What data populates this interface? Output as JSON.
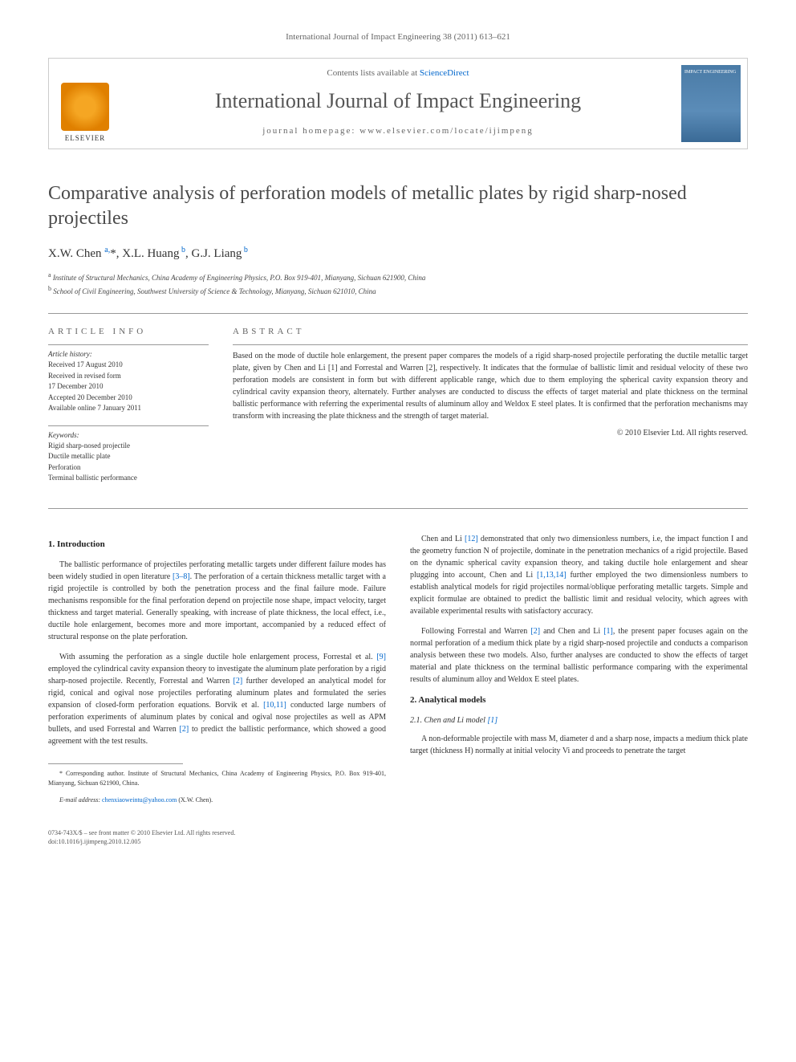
{
  "citation": "International Journal of Impact Engineering 38 (2011) 613–621",
  "masthead": {
    "contents_prefix": "Contents lists available at ",
    "contents_link": "ScienceDirect",
    "journal_name": "International Journal of Impact Engineering",
    "homepage_prefix": "journal homepage: ",
    "homepage_url": "www.elsevier.com/locate/ijimpeng",
    "publisher": "ELSEVIER",
    "cover_label": "IMPACT ENGINEERING"
  },
  "title": "Comparative analysis of perforation models of metallic plates by rigid sharp-nosed projectiles",
  "authors_html": "X.W. Chen <sup>a,</sup>*, X.L. Huang<sup> b</sup>, G.J. Liang<sup> b</sup>",
  "affiliations": [
    {
      "sup": "a",
      "text": "Institute of Structural Mechanics, China Academy of Engineering Physics, P.O. Box 919-401, Mianyang, Sichuan 621900, China"
    },
    {
      "sup": "b",
      "text": "School of Civil Engineering, Southwest University of Science & Technology, Mianyang, Sichuan 621010, China"
    }
  ],
  "article_info": {
    "heading": "ARTICLE INFO",
    "history_label": "Article history:",
    "history": [
      "Received 17 August 2010",
      "Received in revised form",
      "17 December 2010",
      "Accepted 20 December 2010",
      "Available online 7 January 2011"
    ],
    "keywords_label": "Keywords:",
    "keywords": [
      "Rigid sharp-nosed projectile",
      "Ductile metallic plate",
      "Perforation",
      "Terminal ballistic performance"
    ]
  },
  "abstract": {
    "heading": "ABSTRACT",
    "text": "Based on the mode of ductile hole enlargement, the present paper compares the models of a rigid sharp-nosed projectile perforating the ductile metallic target plate, given by Chen and Li [1] and Forrestal and Warren [2], respectively. It indicates that the formulae of ballistic limit and residual velocity of these two perforation models are consistent in form but with different applicable range, which due to them employing the spherical cavity expansion theory and cylindrical cavity expansion theory, alternately. Further analyses are conducted to discuss the effects of target material and plate thickness on the terminal ballistic performance with referring the experimental results of aluminum alloy and Weldox E steel plates. It is confirmed that the perforation mechanisms may transform with increasing the plate thickness and the strength of target material.",
    "copyright": "© 2010 Elsevier Ltd. All rights reserved."
  },
  "body": {
    "left": {
      "s1_heading": "1. Introduction",
      "p1": "The ballistic performance of projectiles perforating metallic targets under different failure modes has been widely studied in open literature [3–8]. The perforation of a certain thickness metallic target with a rigid projectile is controlled by both the penetration process and the final failure mode. Failure mechanisms responsible for the final perforation depend on projectile nose shape, impact velocity, target thickness and target material. Generally speaking, with increase of plate thickness, the local effect, i.e., ductile hole enlargement, becomes more and more important, accompanied by a reduced effect of structural response on the plate perforation.",
      "p2": "With assuming the perforation as a single ductile hole enlargement process, Forrestal et al. [9] employed the cylindrical cavity expansion theory to investigate the aluminum plate perforation by a rigid sharp-nosed projectile. Recently, Forrestal and Warren [2] further developed an analytical model for rigid, conical and ogival nose projectiles perforating aluminum plates and formulated the series expansion of closed-form perforation equations. Borvik et al. [10,11] conducted large numbers of perforation experiments of aluminum plates by conical and ogival nose projectiles as well as APM bullets, and used Forrestal and Warren [2] to predict the ballistic performance, which showed a good agreement with the test results."
    },
    "right": {
      "p1": "Chen and Li [12] demonstrated that only two dimensionless numbers, i.e, the impact function I and the geometry function N of projectile, dominate in the penetration mechanics of a rigid projectile. Based on the dynamic spherical cavity expansion theory, and taking ductile hole enlargement and shear plugging into account, Chen and Li [1,13,14] further employed the two dimensionless numbers to establish analytical models for rigid projectiles normal/oblique perforating metallic targets. Simple and explicit formulae are obtained to predict the ballistic limit and residual velocity, which agrees with available experimental results with satisfactory accuracy.",
      "p2": "Following Forrestal and Warren [2] and Chen and Li [1], the present paper focuses again on the normal perforation of a medium thick plate by a rigid sharp-nosed projectile and conducts a comparison analysis between these two models. Also, further analyses are conducted to show the effects of target material and plate thickness on the terminal ballistic performance comparing with the experimental results of aluminum alloy and Weldox E steel plates.",
      "s2_heading": "2. Analytical models",
      "s21_heading": "2.1. Chen and Li model [1]",
      "p3": "A non-deformable projectile with mass M, diameter d and a sharp nose, impacts a medium thick plate target (thickness H) normally at initial velocity Vi and proceeds to penetrate the target"
    }
  },
  "footnote": {
    "corr": "* Corresponding author. Institute of Structural Mechanics, China Academy of Engineering Physics, P.O. Box 919-401, Mianyang, Sichuan 621900, China.",
    "email_label": "E-mail address:",
    "email": "chenxiaoweintu@yahoo.com",
    "email_suffix": "(X.W. Chen)."
  },
  "footer": {
    "line1": "0734-743X/$ – see front matter © 2010 Elsevier Ltd. All rights reserved.",
    "line2": "doi:10.1016/j.ijimpeng.2010.12.005"
  },
  "colors": {
    "link": "#0066cc",
    "text": "#333333",
    "heading": "#4a4a4a",
    "border": "#cccccc"
  }
}
